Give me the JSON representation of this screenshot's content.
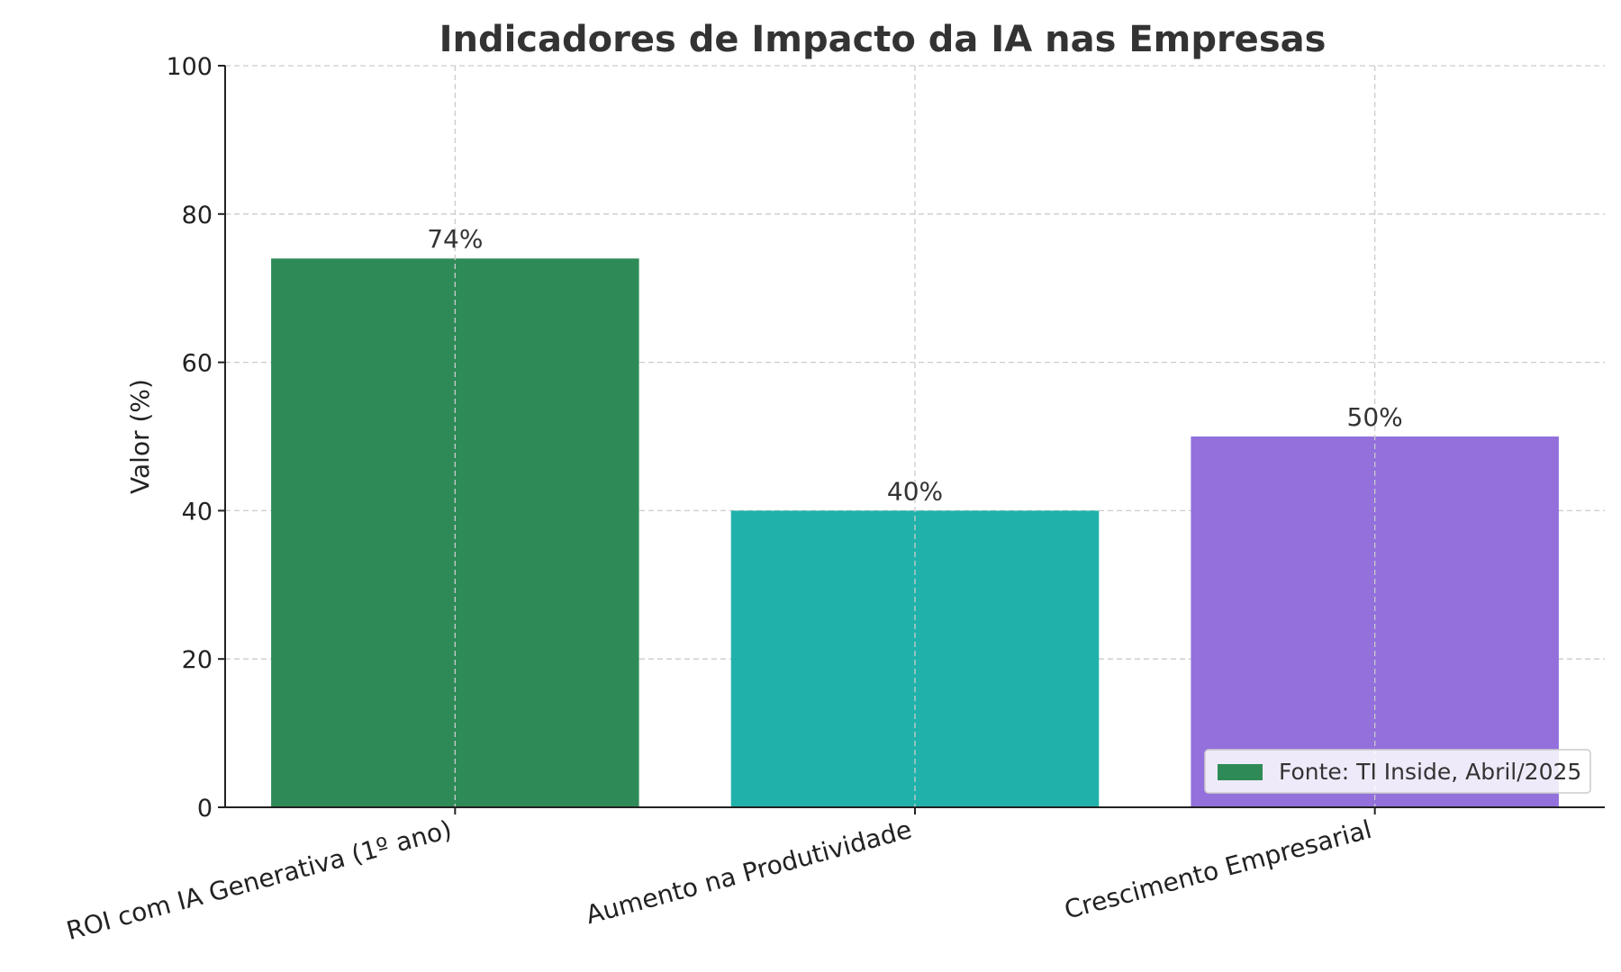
{
  "chart_data": {
    "type": "bar",
    "title": "Indicadores de Impacto da IA nas Empresas",
    "xlabel": "",
    "ylabel": "Valor (%)",
    "categories": [
      "ROI com IA Generativa (1º ano)",
      "Aumento na Produtividade",
      "Crescimento Empresarial"
    ],
    "values": [
      74,
      40,
      50
    ],
    "data_labels": [
      "74%",
      "40%",
      "50%"
    ],
    "colors": [
      "#2e8b57",
      "#20b2aa",
      "#9370db"
    ],
    "ylim": [
      0,
      100
    ],
    "yticks": [
      0,
      20,
      40,
      60,
      80,
      100
    ],
    "ytick_labels": [
      "0",
      "20",
      "40",
      "60",
      "80",
      "100"
    ],
    "grid": true,
    "legend": {
      "entries": [
        "Fonte: TI Inside, Abril/2025"
      ],
      "placement": "lower-right"
    }
  }
}
